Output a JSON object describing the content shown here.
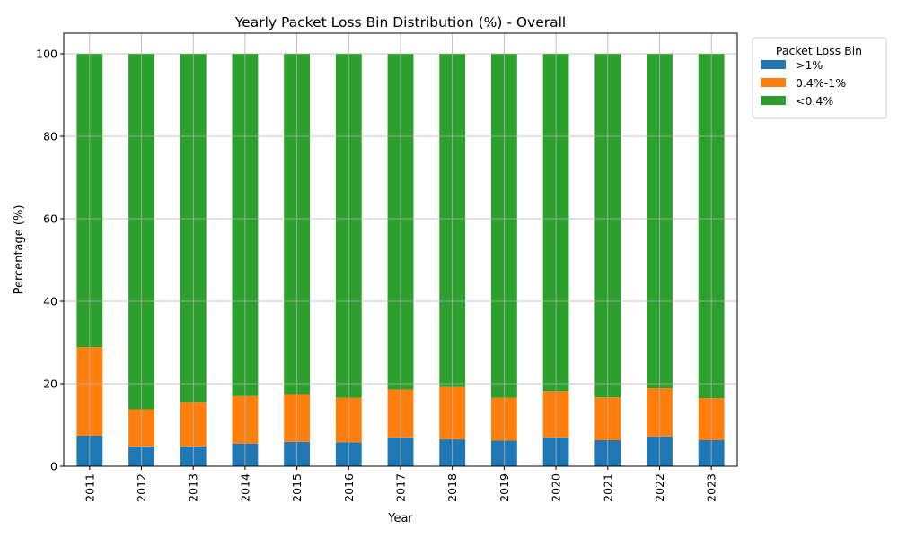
{
  "chart_data": {
    "type": "bar",
    "stacked": true,
    "title": "Yearly Packet Loss Bin Distribution (%) - Overall",
    "xlabel": "Year",
    "ylabel": "Percentage (%)",
    "ylim": [
      0,
      105
    ],
    "yticks": [
      0,
      20,
      40,
      60,
      80,
      100
    ],
    "grid": true,
    "legend_title": "Packet Loss Bin",
    "legend_position": "outside-top-right",
    "categories": [
      "2011",
      "2012",
      "2013",
      "2014",
      "2015",
      "2016",
      "2017",
      "2018",
      "2019",
      "2020",
      "2021",
      "2022",
      "2023"
    ],
    "series": [
      {
        "name": ">1%",
        "color": "#1f77b4",
        "values": [
          7.4,
          4.8,
          4.8,
          5.5,
          5.9,
          5.8,
          7.0,
          6.5,
          6.2,
          7.0,
          6.3,
          7.2,
          6.3
        ]
      },
      {
        "name": "0.4%-1%",
        "color": "#ff7f0e",
        "values": [
          21.5,
          9.0,
          10.8,
          11.5,
          11.6,
          10.8,
          11.6,
          12.7,
          10.4,
          11.2,
          10.4,
          11.7,
          10.2
        ]
      },
      {
        "name": "<0.4%",
        "color": "#2ca02c",
        "values": [
          71.1,
          86.2,
          84.4,
          83.0,
          82.5,
          83.4,
          81.4,
          80.8,
          83.4,
          81.8,
          83.3,
          81.1,
          83.5
        ]
      }
    ]
  }
}
